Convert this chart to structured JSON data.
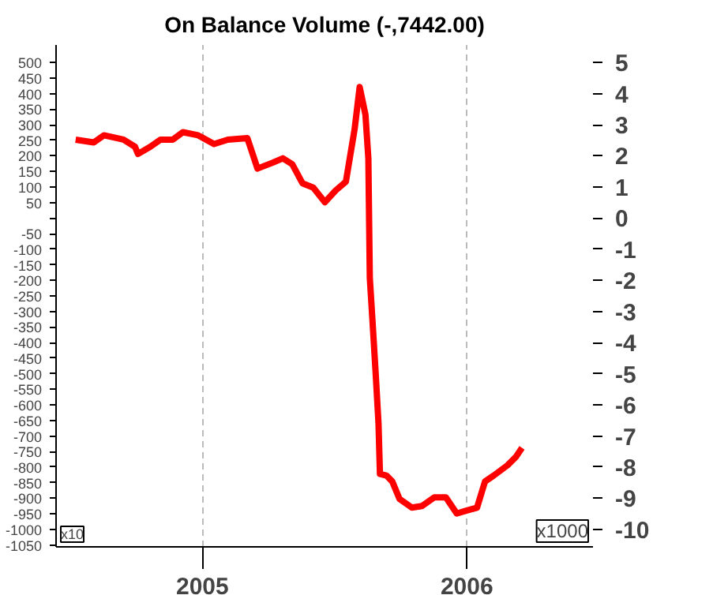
{
  "chart_data": {
    "type": "line",
    "title": "On Balance Volume (-,7442.00)",
    "x": [
      "2004-07-10",
      "2004-08-04",
      "2004-08-18",
      "2004-09-14",
      "2004-09-30",
      "2004-10-04",
      "2004-10-21",
      "2004-11-04",
      "2004-11-21",
      "2004-12-05",
      "2004-12-26",
      "2005-01-17",
      "2005-02-05",
      "2005-03-04",
      "2005-03-18",
      "2005-04-08",
      "2005-04-22",
      "2005-05-05",
      "2005-05-19",
      "2005-06-03",
      "2005-06-19",
      "2005-07-04",
      "2005-07-18",
      "2005-07-30",
      "2005-08-06",
      "2005-08-14",
      "2005-08-18",
      "2005-08-20",
      "2005-08-24",
      "2005-08-28",
      "2005-09-01",
      "2005-09-03",
      "2005-09-12",
      "2005-09-20",
      "2005-09-30",
      "2005-10-17",
      "2005-10-31",
      "2005-11-17",
      "2005-12-03",
      "2005-12-18",
      "2006-01-01",
      "2006-01-15",
      "2006-01-26",
      "2006-02-07",
      "2006-02-26",
      "2006-03-10",
      "2006-03-18"
    ],
    "series": [
      {
        "color": "#ff0000",
        "values": [
          252,
          243,
          266,
          252,
          229,
          206,
          229,
          252,
          252,
          276,
          266,
          238,
          252,
          257,
          159,
          178,
          192,
          173,
          112,
          98,
          51,
          89,
          117,
          285,
          421,
          332,
          192,
          -192,
          -341,
          -495,
          -659,
          -822,
          -827,
          -846,
          -902,
          -930,
          -925,
          -897,
          -897,
          -949,
          -939,
          -930,
          -846,
          -827,
          -794,
          -766,
          -738
        ]
      }
    ],
    "xlim": [
      "2004-06-13",
      "2006-06-24"
    ],
    "xticks": [
      {
        "value": "2005-01-01",
        "label": "2005"
      },
      {
        "value": "2006-01-01",
        "label": "2006"
      }
    ],
    "ylim": [
      -1056,
      556
    ],
    "yticks": [
      500,
      450,
      400,
      350,
      300,
      250,
      200,
      150,
      100,
      50,
      {
        "value": 0,
        "label": null
      },
      -50,
      -100,
      -150,
      -200,
      -250,
      -300,
      -350,
      -400,
      -450,
      -500,
      -550,
      -600,
      -650,
      -700,
      -750,
      -800,
      -850,
      -900,
      -950,
      -1000,
      -1050
    ],
    "y2lim": [
      -10.56,
      5.56
    ],
    "y2ticks": [
      5,
      4,
      3,
      2,
      1,
      0,
      -1,
      -2,
      -3,
      -4,
      -5,
      -6,
      -7,
      -8,
      -9,
      -10
    ],
    "grid": "x",
    "line_style": "solid",
    "marker": "none",
    "annotations": [
      "x10",
      "x1000"
    ]
  }
}
